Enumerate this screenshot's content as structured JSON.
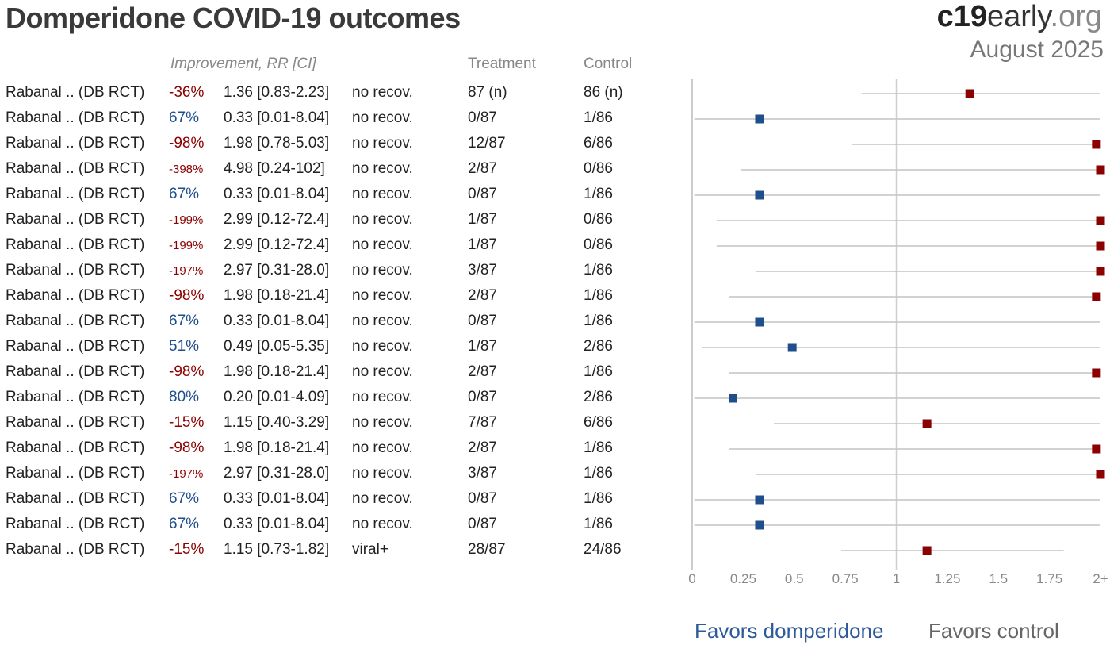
{
  "title": "Domperidone COVID-19 outcomes",
  "brand": {
    "part1": "c19",
    "part2": "early",
    "part3": ".org"
  },
  "date": "August 2025",
  "headers": {
    "improvement": "Improvement, RR [CI]",
    "treatment": "Treatment",
    "control": "Control"
  },
  "colors": {
    "negative": "#8b0000",
    "positive": "#1f4e8c",
    "axis": "#bbbbbb"
  },
  "favors": {
    "left": "Favors domperidone",
    "right": "Favors control"
  },
  "chart_data": {
    "type": "forest",
    "xlim": [
      0,
      2
    ],
    "ticks": [
      "0",
      "0.25",
      "0.5",
      "0.75",
      "1",
      "1.25",
      "1.5",
      "1.75",
      "2+"
    ],
    "tick_values": [
      0,
      0.25,
      0.5,
      0.75,
      1,
      1.25,
      1.5,
      1.75,
      2
    ],
    "reference_line": 1,
    "rows": [
      {
        "study": "Rabanal .. (DB RCT)",
        "improvement": "-36%",
        "rr": "1.36 [0.83-2.23]",
        "outcome": "no recov.",
        "treatment": "87 (n)",
        "control": "86 (n)",
        "est": 1.36,
        "lo": 0.83,
        "hi": 2.23
      },
      {
        "study": "Rabanal .. (DB RCT)",
        "improvement": "67%",
        "rr": "0.33 [0.01-8.04]",
        "outcome": "no recov.",
        "treatment": "0/87",
        "control": "1/86",
        "est": 0.33,
        "lo": 0.01,
        "hi": 8.04
      },
      {
        "study": "Rabanal .. (DB RCT)",
        "improvement": "-98%",
        "rr": "1.98 [0.78-5.03]",
        "outcome": "no recov.",
        "treatment": "12/87",
        "control": "6/86",
        "est": 1.98,
        "lo": 0.78,
        "hi": 5.03
      },
      {
        "study": "Rabanal .. (DB RCT)",
        "improvement": "-398%",
        "rr": "4.98 [0.24-102]",
        "outcome": "no recov.",
        "treatment": "2/87",
        "control": "0/86",
        "est": 4.98,
        "lo": 0.24,
        "hi": 102
      },
      {
        "study": "Rabanal .. (DB RCT)",
        "improvement": "67%",
        "rr": "0.33 [0.01-8.04]",
        "outcome": "no recov.",
        "treatment": "0/87",
        "control": "1/86",
        "est": 0.33,
        "lo": 0.01,
        "hi": 8.04
      },
      {
        "study": "Rabanal .. (DB RCT)",
        "improvement": "-199%",
        "rr": "2.99 [0.12-72.4]",
        "outcome": "no recov.",
        "treatment": "1/87",
        "control": "0/86",
        "est": 2.99,
        "lo": 0.12,
        "hi": 72.4
      },
      {
        "study": "Rabanal .. (DB RCT)",
        "improvement": "-199%",
        "rr": "2.99 [0.12-72.4]",
        "outcome": "no recov.",
        "treatment": "1/87",
        "control": "0/86",
        "est": 2.99,
        "lo": 0.12,
        "hi": 72.4
      },
      {
        "study": "Rabanal .. (DB RCT)",
        "improvement": "-197%",
        "rr": "2.97 [0.31-28.0]",
        "outcome": "no recov.",
        "treatment": "3/87",
        "control": "1/86",
        "est": 2.97,
        "lo": 0.31,
        "hi": 28.0
      },
      {
        "study": "Rabanal .. (DB RCT)",
        "improvement": "-98%",
        "rr": "1.98 [0.18-21.4]",
        "outcome": "no recov.",
        "treatment": "2/87",
        "control": "1/86",
        "est": 1.98,
        "lo": 0.18,
        "hi": 21.4
      },
      {
        "study": "Rabanal .. (DB RCT)",
        "improvement": "67%",
        "rr": "0.33 [0.01-8.04]",
        "outcome": "no recov.",
        "treatment": "0/87",
        "control": "1/86",
        "est": 0.33,
        "lo": 0.01,
        "hi": 8.04
      },
      {
        "study": "Rabanal .. (DB RCT)",
        "improvement": "51%",
        "rr": "0.49 [0.05-5.35]",
        "outcome": "no recov.",
        "treatment": "1/87",
        "control": "2/86",
        "est": 0.49,
        "lo": 0.05,
        "hi": 5.35
      },
      {
        "study": "Rabanal .. (DB RCT)",
        "improvement": "-98%",
        "rr": "1.98 [0.18-21.4]",
        "outcome": "no recov.",
        "treatment": "2/87",
        "control": "1/86",
        "est": 1.98,
        "lo": 0.18,
        "hi": 21.4
      },
      {
        "study": "Rabanal .. (DB RCT)",
        "improvement": "80%",
        "rr": "0.20 [0.01-4.09]",
        "outcome": "no recov.",
        "treatment": "0/87",
        "control": "2/86",
        "est": 0.2,
        "lo": 0.01,
        "hi": 4.09
      },
      {
        "study": "Rabanal .. (DB RCT)",
        "improvement": "-15%",
        "rr": "1.15 [0.40-3.29]",
        "outcome": "no recov.",
        "treatment": "7/87",
        "control": "6/86",
        "est": 1.15,
        "lo": 0.4,
        "hi": 3.29
      },
      {
        "study": "Rabanal .. (DB RCT)",
        "improvement": "-98%",
        "rr": "1.98 [0.18-21.4]",
        "outcome": "no recov.",
        "treatment": "2/87",
        "control": "1/86",
        "est": 1.98,
        "lo": 0.18,
        "hi": 21.4
      },
      {
        "study": "Rabanal .. (DB RCT)",
        "improvement": "-197%",
        "rr": "2.97 [0.31-28.0]",
        "outcome": "no recov.",
        "treatment": "3/87",
        "control": "1/86",
        "est": 2.97,
        "lo": 0.31,
        "hi": 28.0
      },
      {
        "study": "Rabanal .. (DB RCT)",
        "improvement": "67%",
        "rr": "0.33 [0.01-8.04]",
        "outcome": "no recov.",
        "treatment": "0/87",
        "control": "1/86",
        "est": 0.33,
        "lo": 0.01,
        "hi": 8.04
      },
      {
        "study": "Rabanal .. (DB RCT)",
        "improvement": "67%",
        "rr": "0.33 [0.01-8.04]",
        "outcome": "no recov.",
        "treatment": "0/87",
        "control": "1/86",
        "est": 0.33,
        "lo": 0.01,
        "hi": 8.04
      },
      {
        "study": "Rabanal .. (DB RCT)",
        "improvement": "-15%",
        "rr": "1.15 [0.73-1.82]",
        "outcome": "viral+",
        "treatment": "28/87",
        "control": "24/86",
        "est": 1.15,
        "lo": 0.73,
        "hi": 1.82
      }
    ]
  }
}
